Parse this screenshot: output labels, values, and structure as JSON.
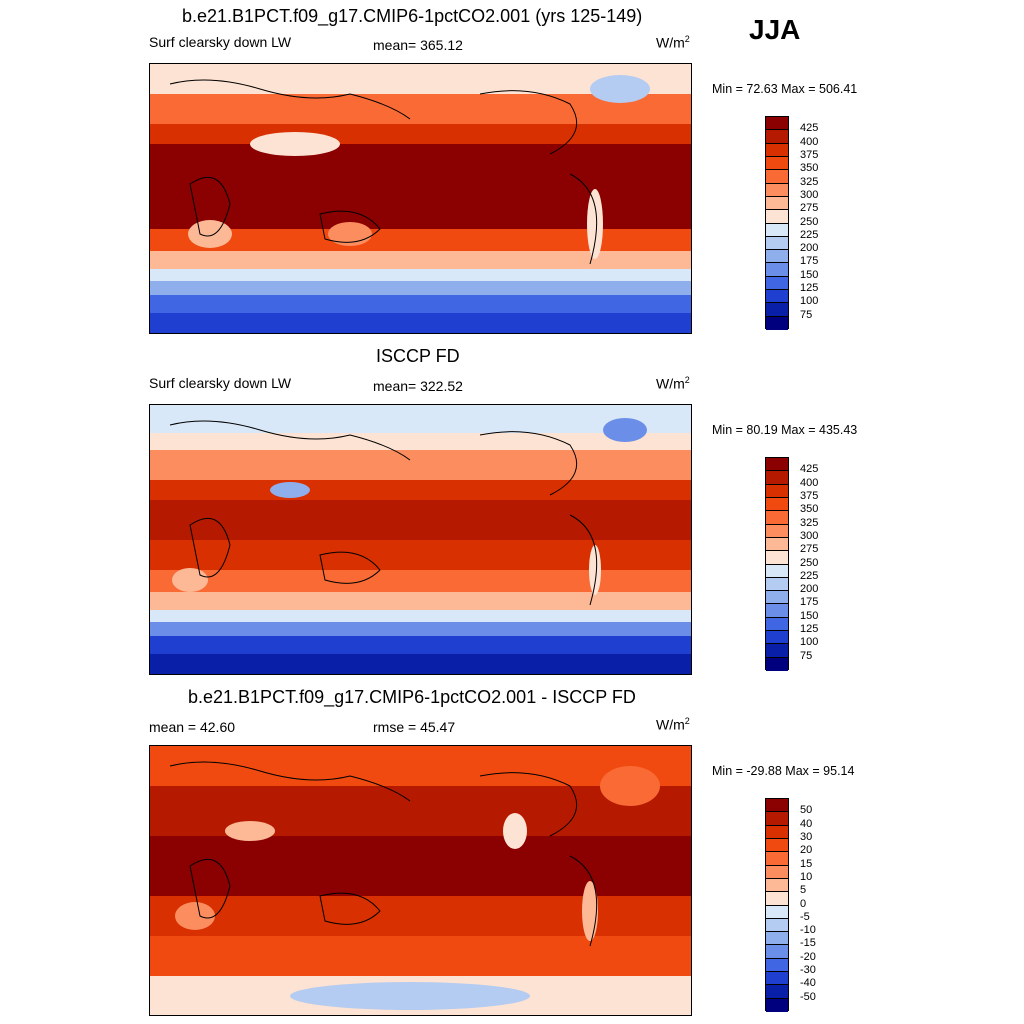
{
  "season": "JJA",
  "unit_base": "W/m",
  "unit_exp": "2",
  "panels": [
    {
      "title": "b.e21.B1PCT.f09_g17.CMIP6-1pctCO2.001 (yrs 125-149)",
      "left_label": "Surf clearsky down LW",
      "center_label": "mean= 365.12",
      "min_max": "Min =  72.63 Max = 506.41"
    },
    {
      "title": "ISCCP FD",
      "left_label": "Surf clearsky down LW",
      "center_label": "mean= 322.52",
      "min_max": "Min =  80.19 Max = 435.43"
    },
    {
      "title": "b.e21.B1PCT.f09_g17.CMIP6-1pctCO2.001 - ISCCP FD",
      "left_label": "mean =  42.60",
      "center_label": "rmse =  45.47",
      "min_max": "Min = -29.88 Max =  95.14"
    }
  ],
  "chart_data": [
    {
      "type": "heatmap",
      "title": "b.e21.B1PCT.f09_g17.CMIP6-1pctCO2.001 (yrs 125-149)",
      "variable": "Surf clearsky down LW",
      "units": "W/m2",
      "mean": 365.12,
      "min": 72.63,
      "max": 506.41,
      "colorbar_levels": [
        425,
        400,
        375,
        350,
        325,
        300,
        275,
        250,
        225,
        200,
        175,
        150,
        125,
        100,
        75
      ],
      "colorbar_colors": [
        "#8b0000",
        "#b51a00",
        "#d83000",
        "#f04a10",
        "#f96a35",
        "#fc8d5e",
        "#fdb896",
        "#fde3d3",
        "#d9e8f8",
        "#b4ccf2",
        "#8fafec",
        "#6b8ee8",
        "#4166e3",
        "#1f3fd1",
        "#0a1fa8",
        "#00007f"
      ]
    },
    {
      "type": "heatmap",
      "title": "ISCCP FD",
      "variable": "Surf clearsky down LW",
      "units": "W/m2",
      "mean": 322.52,
      "min": 80.19,
      "max": 435.43,
      "colorbar_levels": [
        425,
        400,
        375,
        350,
        325,
        300,
        275,
        250,
        225,
        200,
        175,
        150,
        125,
        100,
        75
      ],
      "colorbar_colors": [
        "#8b0000",
        "#b51a00",
        "#d83000",
        "#f04a10",
        "#f96a35",
        "#fc8d5e",
        "#fdb896",
        "#fde3d3",
        "#d9e8f8",
        "#b4ccf2",
        "#8fafec",
        "#6b8ee8",
        "#4166e3",
        "#1f3fd1",
        "#0a1fa8",
        "#00007f"
      ]
    },
    {
      "type": "heatmap",
      "title": "b.e21.B1PCT.f09_g17.CMIP6-1pctCO2.001 - ISCCP FD",
      "units": "W/m2",
      "mean": 42.6,
      "rmse": 45.47,
      "min": -29.88,
      "max": 95.14,
      "colorbar_levels": [
        50,
        40,
        30,
        20,
        15,
        10,
        5,
        0,
        -5,
        -10,
        -15,
        -20,
        -30,
        -40,
        -50
      ],
      "colorbar_colors": [
        "#8b0000",
        "#b51a00",
        "#d83000",
        "#f04a10",
        "#f96a35",
        "#fc8d5e",
        "#fdb896",
        "#fde3d3",
        "#d9e8f8",
        "#b4ccf2",
        "#8fafec",
        "#6b8ee8",
        "#4166e3",
        "#1f3fd1",
        "#0a1fa8",
        "#00007f"
      ]
    }
  ]
}
